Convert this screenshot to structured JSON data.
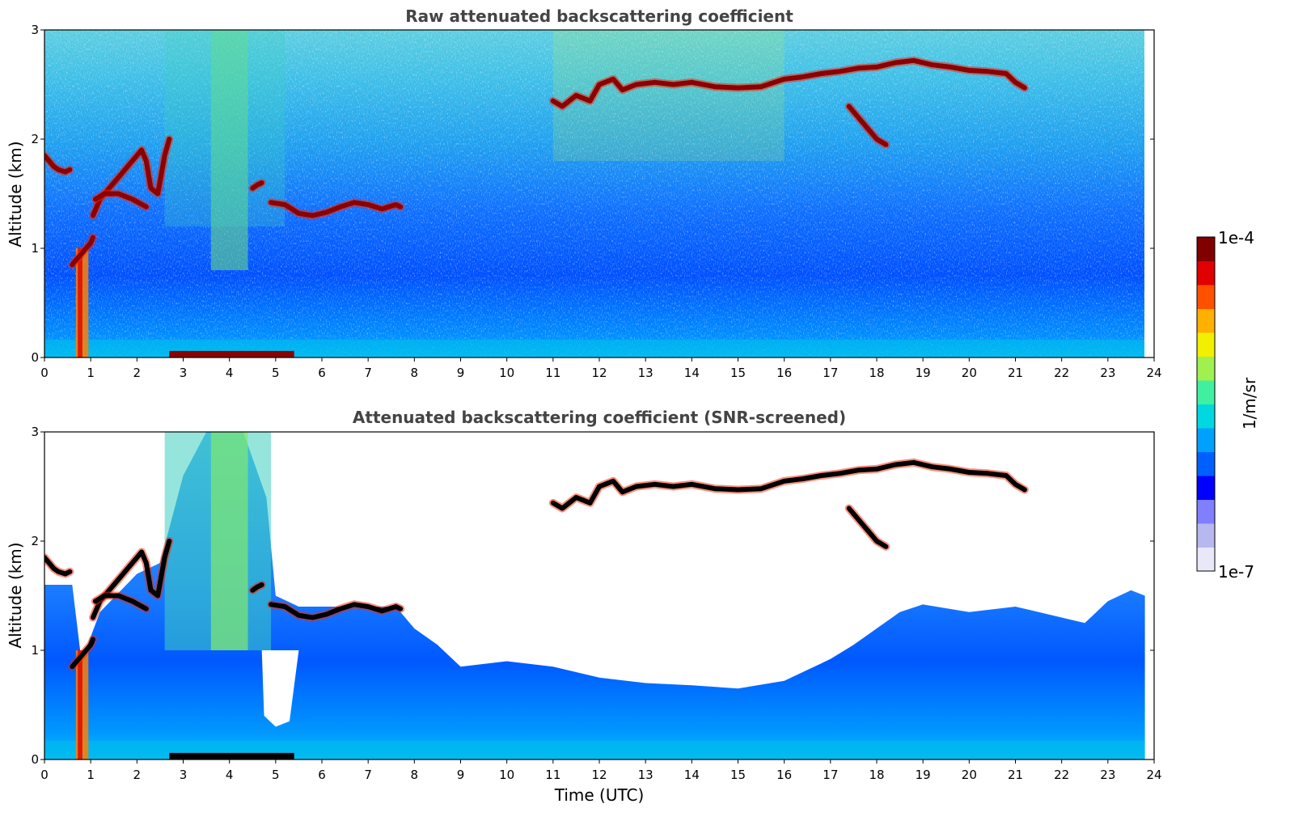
{
  "chart_data": [
    {
      "type": "heatmap",
      "title": "Raw attenuated backscattering coefficient",
      "xlabel": "",
      "ylabel": "Altitude (km)",
      "xlim": [
        0,
        24
      ],
      "ylim": [
        0,
        3
      ],
      "xticks": [
        "0",
        "1",
        "2",
        "3",
        "4",
        "5",
        "6",
        "7",
        "8",
        "9",
        "10",
        "11",
        "12",
        "13",
        "14",
        "15",
        "16",
        "17",
        "18",
        "19",
        "20",
        "21",
        "22",
        "23",
        "24"
      ],
      "yticks": [
        "0",
        "1",
        "2",
        "3"
      ],
      "screened": false,
      "cloud_layers": [
        {
          "t": [
            0.0,
            0.1,
            0.2,
            0.3,
            0.45,
            0.55
          ],
          "z": [
            1.85,
            1.8,
            1.75,
            1.72,
            1.7,
            1.72
          ]
        },
        {
          "t": [
            0.6,
            0.7,
            0.8,
            0.9,
            1.0,
            1.05
          ],
          "z": [
            0.85,
            0.9,
            0.95,
            1.0,
            1.05,
            1.1
          ]
        },
        {
          "t": [
            1.05,
            1.2,
            1.4,
            1.6,
            1.8,
            2.0,
            2.1,
            2.2,
            2.3,
            2.45,
            2.6,
            2.7
          ],
          "z": [
            1.3,
            1.45,
            1.55,
            1.65,
            1.75,
            1.85,
            1.9,
            1.8,
            1.55,
            1.5,
            1.85,
            2.0
          ]
        },
        {
          "t": [
            1.1,
            1.3,
            1.6,
            1.9,
            2.2
          ],
          "z": [
            1.45,
            1.5,
            1.5,
            1.45,
            1.38
          ]
        },
        {
          "t": [
            4.5,
            4.6,
            4.7
          ],
          "z": [
            1.55,
            1.58,
            1.6
          ]
        },
        {
          "t": [
            4.9,
            5.2,
            5.5,
            5.8,
            6.1,
            6.4,
            6.7,
            7.0,
            7.3,
            7.6,
            7.7
          ],
          "z": [
            1.42,
            1.4,
            1.32,
            1.3,
            1.33,
            1.38,
            1.42,
            1.4,
            1.36,
            1.4,
            1.38
          ]
        },
        {
          "t": [
            11.0,
            11.2,
            11.5,
            11.8,
            12.0,
            12.3,
            12.5,
            12.8,
            13.2,
            13.6,
            14.0,
            14.5,
            15.0,
            15.5,
            16.0,
            16.4,
            16.8,
            17.2,
            17.6,
            18.0,
            18.4,
            18.8,
            19.2,
            19.6,
            20.0,
            20.4,
            20.8,
            21.0,
            21.2
          ],
          "z": [
            2.35,
            2.3,
            2.4,
            2.35,
            2.5,
            2.55,
            2.45,
            2.5,
            2.52,
            2.5,
            2.52,
            2.48,
            2.47,
            2.48,
            2.55,
            2.57,
            2.6,
            2.62,
            2.65,
            2.66,
            2.7,
            2.72,
            2.68,
            2.66,
            2.63,
            2.62,
            2.6,
            2.52,
            2.47
          ]
        },
        {
          "t": [
            17.4,
            17.6,
            17.8,
            18.0,
            18.2
          ],
          "z": [
            2.3,
            2.2,
            2.1,
            2.0,
            1.95
          ]
        }
      ]
    },
    {
      "type": "heatmap",
      "title": "Attenuated backscattering coefficient (SNR-screened)",
      "xlabel": "Time (UTC)",
      "ylabel": "Altitude (km)",
      "xlim": [
        0,
        24
      ],
      "ylim": [
        0,
        3
      ],
      "xticks": [
        "0",
        "1",
        "2",
        "3",
        "4",
        "5",
        "6",
        "7",
        "8",
        "9",
        "10",
        "11",
        "12",
        "13",
        "14",
        "15",
        "16",
        "17",
        "18",
        "19",
        "20",
        "21",
        "22",
        "23",
        "24"
      ],
      "yticks": [
        "0",
        "1",
        "2",
        "3"
      ],
      "screened": true,
      "signal_top_km": [
        {
          "t": 0.0,
          "z": 1.6
        },
        {
          "t": 0.6,
          "z": 1.6
        },
        {
          "t": 0.8,
          "z": 0.9
        },
        {
          "t": 1.2,
          "z": 1.35
        },
        {
          "t": 2.0,
          "z": 1.7
        },
        {
          "t": 2.5,
          "z": 1.8
        },
        {
          "t": 3.0,
          "z": 2.6
        },
        {
          "t": 3.5,
          "z": 3.0
        },
        {
          "t": 4.3,
          "z": 3.0
        },
        {
          "t": 4.8,
          "z": 2.4
        },
        {
          "t": 5.0,
          "z": 1.5
        },
        {
          "t": 5.5,
          "z": 1.4
        },
        {
          "t": 7.6,
          "z": 1.4
        },
        {
          "t": 8.0,
          "z": 1.2
        },
        {
          "t": 8.5,
          "z": 1.05
        },
        {
          "t": 9.0,
          "z": 0.85
        },
        {
          "t": 10.0,
          "z": 0.9
        },
        {
          "t": 11.0,
          "z": 0.85
        },
        {
          "t": 12.0,
          "z": 0.75
        },
        {
          "t": 13.0,
          "z": 0.7
        },
        {
          "t": 14.0,
          "z": 0.68
        },
        {
          "t": 15.0,
          "z": 0.65
        },
        {
          "t": 16.0,
          "z": 0.72
        },
        {
          "t": 16.5,
          "z": 0.82
        },
        {
          "t": 17.0,
          "z": 0.92
        },
        {
          "t": 17.5,
          "z": 1.05
        },
        {
          "t": 18.0,
          "z": 1.2
        },
        {
          "t": 18.5,
          "z": 1.35
        },
        {
          "t": 19.0,
          "z": 1.42
        },
        {
          "t": 20.0,
          "z": 1.35
        },
        {
          "t": 21.0,
          "z": 1.4
        },
        {
          "t": 22.0,
          "z": 1.3
        },
        {
          "t": 22.5,
          "z": 1.25
        },
        {
          "t": 23.0,
          "z": 1.45
        },
        {
          "t": 23.5,
          "z": 1.55
        },
        {
          "t": 23.8,
          "z": 1.5
        }
      ]
    }
  ],
  "colorbar": {
    "label": "1/m/sr",
    "max_label": "1e-4",
    "min_label": "1e-7",
    "scale": "log",
    "range": [
      1e-07,
      0.0001
    ],
    "colormap": [
      "#e8e8f8",
      "#b8b8f0",
      "#8080ff",
      "#0000ff",
      "#0060ff",
      "#00a0ff",
      "#00d8e0",
      "#40f0a0",
      "#a0f050",
      "#f0f000",
      "#ffb000",
      "#ff5000",
      "#e00000",
      "#800000"
    ]
  }
}
